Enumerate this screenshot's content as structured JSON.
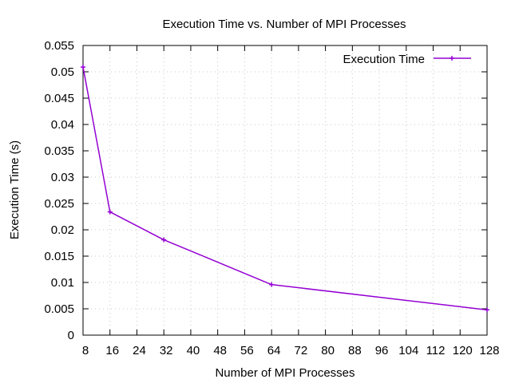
{
  "chart_data": {
    "type": "line",
    "title": "Execution Time vs. Number of MPI Processes",
    "xlabel": "Number of MPI Processes",
    "ylabel": "Execution Time (s)",
    "xlim": [
      8,
      128
    ],
    "ylim": [
      0,
      0.055
    ],
    "xticks": [
      "8",
      "16",
      "24",
      "32",
      "40",
      "48",
      "56",
      "64",
      "72",
      "80",
      "88",
      "96",
      "104",
      "112",
      "120",
      "128"
    ],
    "xtick_values": [
      8,
      16,
      24,
      32,
      40,
      48,
      56,
      64,
      72,
      80,
      88,
      96,
      104,
      112,
      120,
      128
    ],
    "yticks": [
      "0",
      "0.005",
      "0.01",
      "0.015",
      "0.02",
      "0.025",
      "0.03",
      "0.035",
      "0.04",
      "0.045",
      "0.05",
      "0.055"
    ],
    "ytick_values": [
      0,
      0.005,
      0.01,
      0.015,
      0.02,
      0.025,
      0.03,
      0.035,
      0.04,
      0.045,
      0.05,
      0.055
    ],
    "grid": true,
    "legend_position": "top-right",
    "series": [
      {
        "name": "Execution Time",
        "color": "#9400d3",
        "marker": "plus",
        "x": [
          8,
          16,
          32,
          64,
          128
        ],
        "y": [
          0.0509,
          0.0234,
          0.0181,
          0.0096,
          0.0048
        ]
      }
    ]
  }
}
